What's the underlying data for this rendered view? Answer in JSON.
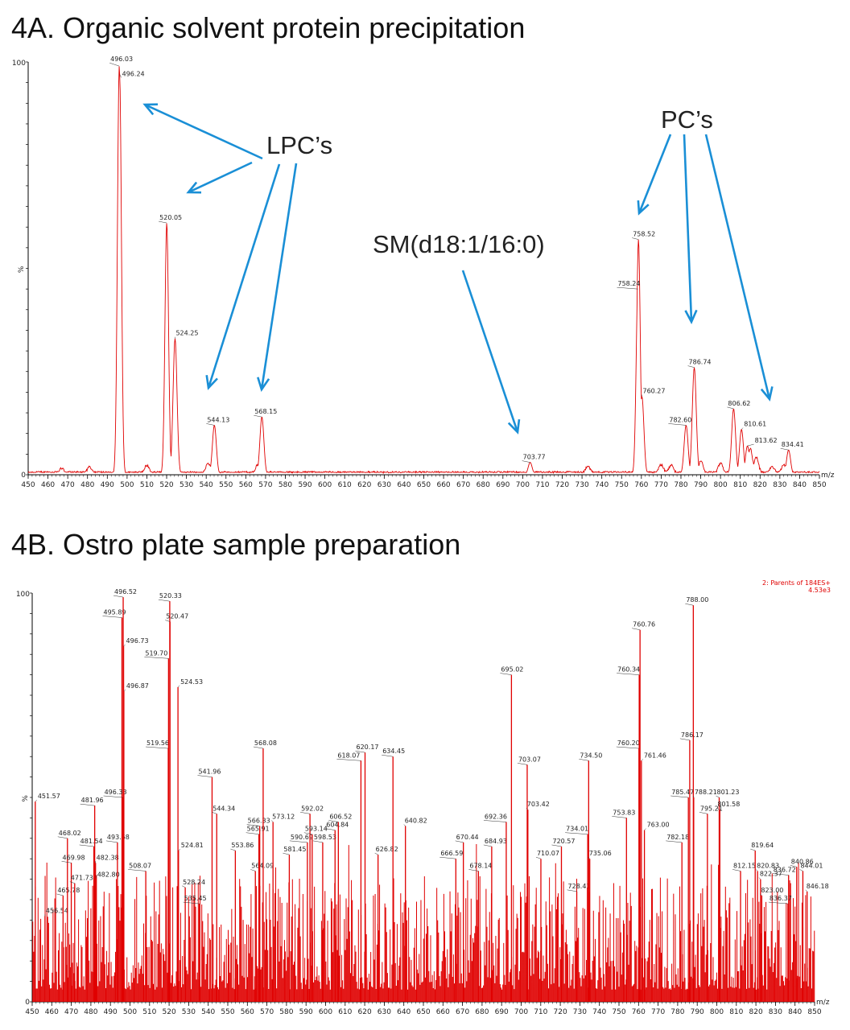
{
  "chart_data": [
    {
      "type": "line",
      "title": "4A. Organic solvent protein precipitation",
      "xlabel": "m/z",
      "ylabel": "%",
      "xlim": [
        450,
        850
      ],
      "ylim": [
        0,
        100
      ],
      "x_ticks": [
        450,
        460,
        470,
        480,
        490,
        500,
        510,
        520,
        530,
        540,
        550,
        560,
        570,
        580,
        590,
        600,
        610,
        620,
        630,
        640,
        650,
        660,
        670,
        680,
        690,
        700,
        710,
        720,
        730,
        740,
        750,
        760,
        770,
        780,
        790,
        800,
        810,
        820,
        830,
        840,
        850
      ],
      "y_tick_labels": [
        "100",
        "%",
        "0"
      ],
      "peaks": [
        {
          "mz": 496.03,
          "rel": 99,
          "label": "496.03"
        },
        {
          "mz": 496.24,
          "rel": 97,
          "label": "496.24"
        },
        {
          "mz": 520.05,
          "rel": 61,
          "label": "520.05"
        },
        {
          "mz": 524.25,
          "rel": 33,
          "label": "524.25"
        },
        {
          "mz": 544.13,
          "rel": 12,
          "label": "544.13"
        },
        {
          "mz": 568.15,
          "rel": 14,
          "label": "568.15"
        },
        {
          "mz": 703.77,
          "rel": 3,
          "label": "703.77"
        },
        {
          "mz": 758.52,
          "rel": 57,
          "label": "758.52"
        },
        {
          "mz": 758.24,
          "rel": 45,
          "label": "758.24"
        },
        {
          "mz": 760.27,
          "rel": 19,
          "label": "760.27"
        },
        {
          "mz": 782.6,
          "rel": 12,
          "label": "782.60"
        },
        {
          "mz": 786.74,
          "rel": 26,
          "label": "786.74"
        },
        {
          "mz": 806.62,
          "rel": 16,
          "label": "806.62"
        },
        {
          "mz": 810.61,
          "rel": 11,
          "label": "810.61"
        },
        {
          "mz": 813.62,
          "rel": 7,
          "label": "813.62"
        },
        {
          "mz": 834.41,
          "rel": 6,
          "label": "834.41"
        }
      ],
      "annotations": [
        {
          "text": "LPC’s",
          "targets_mz": [
            496,
            520,
            544,
            568
          ]
        },
        {
          "text": "SM(d18:1/16:0)",
          "targets_mz": [
            703.77
          ]
        },
        {
          "text": "PC’s",
          "targets_mz": [
            758,
            786,
            806
          ]
        }
      ]
    },
    {
      "type": "line",
      "title": "4B. Ostro plate sample preparation",
      "xlabel": "m/z",
      "ylabel": "%",
      "xlim": [
        450,
        850
      ],
      "ylim": [
        0,
        100
      ],
      "x_ticks": [
        450,
        460,
        470,
        480,
        490,
        500,
        510,
        520,
        530,
        540,
        550,
        560,
        570,
        580,
        590,
        600,
        610,
        620,
        630,
        640,
        650,
        660,
        670,
        680,
        690,
        700,
        710,
        720,
        730,
        740,
        750,
        760,
        770,
        780,
        790,
        800,
        810,
        820,
        830,
        840,
        850
      ],
      "y_tick_labels": [
        "100",
        "%",
        "0"
      ],
      "legend": [
        "2: Parents of 184ES+",
        "4.53e3"
      ],
      "peaks": [
        {
          "mz": 451.57,
          "rel": 49,
          "label": "451.57"
        },
        {
          "mz": 456.54,
          "rel": 21,
          "label": "456.54"
        },
        {
          "mz": 465.78,
          "rel": 26,
          "label": "465.78"
        },
        {
          "mz": 468.02,
          "rel": 40,
          "label": "468.02"
        },
        {
          "mz": 469.98,
          "rel": 34,
          "label": "469.98"
        },
        {
          "mz": 471.73,
          "rel": 29,
          "label": "471.73"
        },
        {
          "mz": 481.54,
          "rel": 38,
          "label": "481.54"
        },
        {
          "mz": 481.96,
          "rel": 48,
          "label": "481.96"
        },
        {
          "mz": 482.38,
          "rel": 34,
          "label": "482.38"
        },
        {
          "mz": 482.8,
          "rel": 31,
          "label": "482.80"
        },
        {
          "mz": 493.58,
          "rel": 39,
          "label": "493.58"
        },
        {
          "mz": 495.89,
          "rel": 94,
          "label": "495.89"
        },
        {
          "mz": 496.33,
          "rel": 50,
          "label": "496.33"
        },
        {
          "mz": 496.52,
          "rel": 99,
          "label": "496.52"
        },
        {
          "mz": 496.73,
          "rel": 87,
          "label": "496.73"
        },
        {
          "mz": 496.87,
          "rel": 76,
          "label": "496.87"
        },
        {
          "mz": 508.07,
          "rel": 32,
          "label": "508.07"
        },
        {
          "mz": 519.56,
          "rel": 62,
          "label": "519.56"
        },
        {
          "mz": 519.7,
          "rel": 84,
          "label": "519.70"
        },
        {
          "mz": 520.33,
          "rel": 98,
          "label": "520.33"
        },
        {
          "mz": 520.47,
          "rel": 93,
          "label": "520.47"
        },
        {
          "mz": 524.53,
          "rel": 77,
          "label": "524.53"
        },
        {
          "mz": 524.81,
          "rel": 37,
          "label": "524.81"
        },
        {
          "mz": 528.24,
          "rel": 28,
          "label": "528.24"
        },
        {
          "mz": 535.45,
          "rel": 24,
          "label": "535.45"
        },
        {
          "mz": 541.96,
          "rel": 55,
          "label": "541.96"
        },
        {
          "mz": 544.34,
          "rel": 46,
          "label": "544.34"
        },
        {
          "mz": 553.86,
          "rel": 37,
          "label": "553.86"
        },
        {
          "mz": 564.09,
          "rel": 32,
          "label": "564.09"
        },
        {
          "mz": 565.91,
          "rel": 41,
          "label": "565.91"
        },
        {
          "mz": 566.33,
          "rel": 43,
          "label": "566.33"
        },
        {
          "mz": 568.08,
          "rel": 62,
          "label": "568.08"
        },
        {
          "mz": 573.12,
          "rel": 44,
          "label": "573.12"
        },
        {
          "mz": 581.45,
          "rel": 36,
          "label": "581.45"
        },
        {
          "mz": 590.69,
          "rel": 39,
          "label": "590.69"
        },
        {
          "mz": 592.02,
          "rel": 46,
          "label": "592.02"
        },
        {
          "mz": 593.14,
          "rel": 41,
          "label": "593.14"
        },
        {
          "mz": 598.53,
          "rel": 39,
          "label": "598.53"
        },
        {
          "mz": 604.84,
          "rel": 42,
          "label": "604.84"
        },
        {
          "mz": 606.52,
          "rel": 44,
          "label": "606.52"
        },
        {
          "mz": 618.07,
          "rel": 59,
          "label": "618.07"
        },
        {
          "mz": 620.17,
          "rel": 61,
          "label": "620.17"
        },
        {
          "mz": 626.82,
          "rel": 36,
          "label": "626.82"
        },
        {
          "mz": 634.45,
          "rel": 60,
          "label": "634.45"
        },
        {
          "mz": 640.82,
          "rel": 43,
          "label": "640.82"
        },
        {
          "mz": 666.59,
          "rel": 35,
          "label": "666.59"
        },
        {
          "mz": 670.44,
          "rel": 39,
          "label": "670.44"
        },
        {
          "mz": 678.14,
          "rel": 32,
          "label": "678.14"
        },
        {
          "mz": 684.93,
          "rel": 38,
          "label": "684.93"
        },
        {
          "mz": 692.36,
          "rel": 44,
          "label": "692.36"
        },
        {
          "mz": 695.02,
          "rel": 80,
          "label": "695.02"
        },
        {
          "mz": 703.07,
          "rel": 58,
          "label": "703.07"
        },
        {
          "mz": 703.42,
          "rel": 47,
          "label": "703.42"
        },
        {
          "mz": 710.07,
          "rel": 35,
          "label": "710.07"
        },
        {
          "mz": 720.57,
          "rel": 38,
          "label": "720.57"
        },
        {
          "mz": 728.41,
          "rel": 27,
          "label": "728.41"
        },
        {
          "mz": 734.01,
          "rel": 41,
          "label": "734.01"
        },
        {
          "mz": 734.5,
          "rel": 59,
          "label": "734.50"
        },
        {
          "mz": 735.06,
          "rel": 35,
          "label": "735.06"
        },
        {
          "mz": 753.83,
          "rel": 45,
          "label": "753.83"
        },
        {
          "mz": 760.2,
          "rel": 62,
          "label": "760.20"
        },
        {
          "mz": 760.34,
          "rel": 80,
          "label": "760.34"
        },
        {
          "mz": 760.76,
          "rel": 91,
          "label": "760.76"
        },
        {
          "mz": 761.46,
          "rel": 59,
          "label": "761.46"
        },
        {
          "mz": 763.0,
          "rel": 42,
          "label": "763.00"
        },
        {
          "mz": 782.18,
          "rel": 39,
          "label": "782.18"
        },
        {
          "mz": 785.47,
          "rel": 50,
          "label": "785.47"
        },
        {
          "mz": 786.17,
          "rel": 64,
          "label": "786.17"
        },
        {
          "mz": 788.0,
          "rel": 97,
          "label": "788.00"
        },
        {
          "mz": 788.21,
          "rel": 50,
          "label": "788.21"
        },
        {
          "mz": 795.21,
          "rel": 46,
          "label": "795.21"
        },
        {
          "mz": 801.23,
          "rel": 50,
          "label": "801.23"
        },
        {
          "mz": 801.58,
          "rel": 47,
          "label": "801.58"
        },
        {
          "mz": 812.15,
          "rel": 32,
          "label": "812.15"
        },
        {
          "mz": 819.64,
          "rel": 37,
          "label": "819.64"
        },
        {
          "mz": 820.83,
          "rel": 32,
          "label": "820.83"
        },
        {
          "mz": 822.37,
          "rel": 30,
          "label": "822.37"
        },
        {
          "mz": 823.0,
          "rel": 26,
          "label": "823.00"
        },
        {
          "mz": 836.37,
          "rel": 24,
          "label": "836.37"
        },
        {
          "mz": 836.72,
          "rel": 31,
          "label": "836.72"
        },
        {
          "mz": 840.86,
          "rel": 33,
          "label": "840.86"
        },
        {
          "mz": 844.01,
          "rel": 32,
          "label": "844.01"
        },
        {
          "mz": 846.18,
          "rel": 27,
          "label": "846.18"
        }
      ]
    }
  ],
  "colors": {
    "trace": "#e00000",
    "arrow": "#1a8fd6",
    "axis": "#000000"
  }
}
